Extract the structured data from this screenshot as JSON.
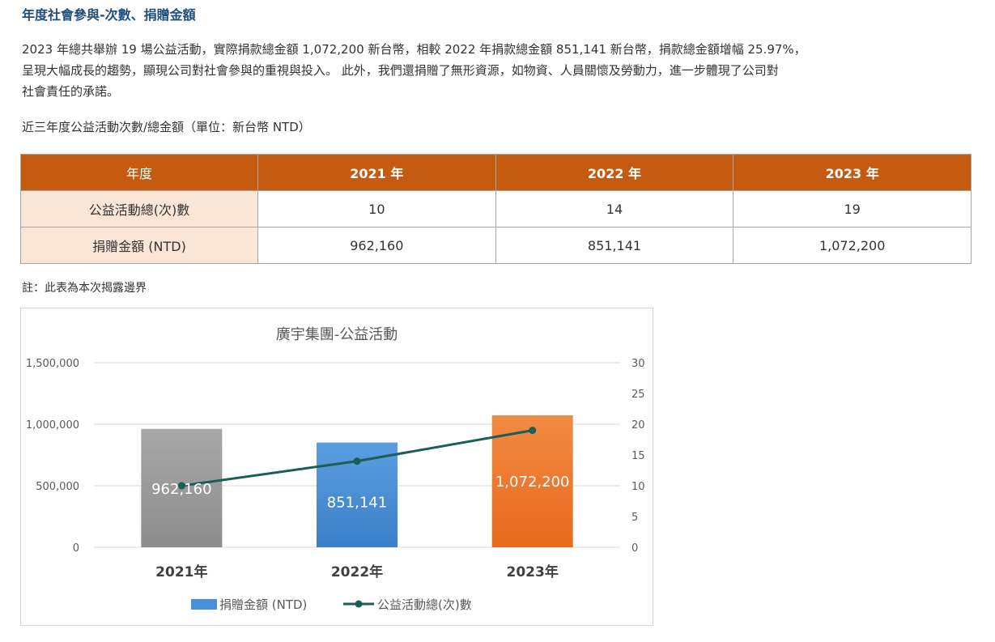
{
  "page_title": "年度社會參與-次數、捐贈金額",
  "intro_lines": [
    "2023 年總共舉辦 19 場公益活動，實際捐款總金額 1,072,200 新台幣，相較 2022 年捐款總金額 851,141 新台幣，捐款總金額增幅 25.97%，",
    "呈現大幅成長的趨勢，顯現公司對社會參與的重視與投入。 此外，我們還捐贈了無形資源，如物資、人員關懷及勞動力，進一步體現了公司對",
    "社會責任的承諾。"
  ],
  "table_caption": "近三年度公益活動次數/總金額（單位：新台幣 NTD）",
  "table": {
    "header": [
      "年度",
      "2021 年",
      "2022 年",
      "2023 年"
    ],
    "rows": [
      {
        "label": "公益活動總(次)數",
        "cells": [
          "10",
          "14",
          "19"
        ]
      },
      {
        "label": "捐贈金額 (NTD)",
        "cells": [
          "962,160",
          "851,141",
          "1,072,200"
        ]
      }
    ],
    "colors": {
      "header_bg": "#c55a11",
      "row_label_bg": "#fbe5d6"
    }
  },
  "note": "註：此表為本次揭露邊界",
  "chart_data": {
    "type": "bar",
    "title": "廣宇集團-公益活動",
    "categories": [
      "2021年",
      "2022年",
      "2023年"
    ],
    "series": [
      {
        "name": "捐贈金額 (NTD)",
        "type": "bar",
        "axis": "left",
        "values": [
          962160,
          851141,
          1072200
        ],
        "data_labels": [
          "962,160",
          "851,141",
          "1,072,200"
        ],
        "colors": [
          "#9b9b9b",
          "#4a90d9",
          "#ef7b2c"
        ]
      },
      {
        "name": "公益活動總(次)數",
        "type": "line",
        "axis": "right",
        "values": [
          10,
          14,
          19
        ],
        "color": "#1b5e55"
      }
    ],
    "y_left": {
      "ylim": [
        0,
        1500000
      ],
      "ticks": [
        "0",
        "500,000",
        "1,000,000",
        "1,500,000"
      ],
      "tick_values": [
        0,
        500000,
        1000000,
        1500000
      ]
    },
    "y_right": {
      "ylim": [
        0,
        30
      ],
      "ticks": [
        "0",
        "5",
        "10",
        "15",
        "20",
        "25",
        "30"
      ],
      "tick_values": [
        0,
        5,
        10,
        15,
        20,
        25,
        30
      ]
    },
    "grid": true,
    "legend_position": "bottom"
  }
}
